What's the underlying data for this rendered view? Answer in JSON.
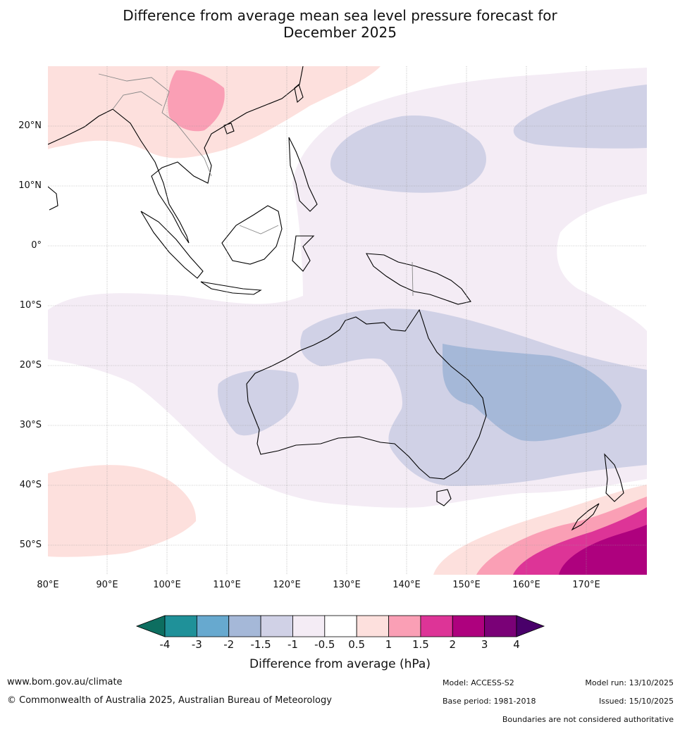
{
  "title_line1": "Difference from average mean sea level pressure forecast for",
  "title_line2": "December 2025",
  "lat_labels": [
    "20°N",
    "10°N",
    "0°",
    "10°S",
    "20°S",
    "30°S",
    "40°S",
    "50°S"
  ],
  "lon_labels": [
    "80°E",
    "90°E",
    "100°E",
    "110°E",
    "120°E",
    "130°E",
    "140°E",
    "150°E",
    "160°E",
    "170°E"
  ],
  "colorbar": {
    "ticks": [
      "-4",
      "-3",
      "-2",
      "-1.5",
      "-1",
      "-0.5",
      "0.5",
      "1",
      "1.5",
      "2",
      "3",
      "4"
    ],
    "colors": [
      "#0d6e60",
      "#1f9199",
      "#67a9cf",
      "#a5b8d8",
      "#d0d1e6",
      "#f4ecf5",
      "#ffffff",
      "#fde0dd",
      "#fa9fb5",
      "#dd3497",
      "#ae017e",
      "#7a0177",
      "#49006a"
    ],
    "label": "Difference from average (hPa)"
  },
  "footer": {
    "website": "www.bom.gov.au/climate",
    "copyright": "© Commonwealth of Australia 2025, Australian Bureau of Meteorology",
    "model": "Model: ACCESS-S2",
    "base_period": "Base period: 1981-2018",
    "model_run": "Model run: 13/10/2025",
    "issued": "Issued: 15/10/2025",
    "disclaimer": "Boundaries are not considered authoritative"
  }
}
